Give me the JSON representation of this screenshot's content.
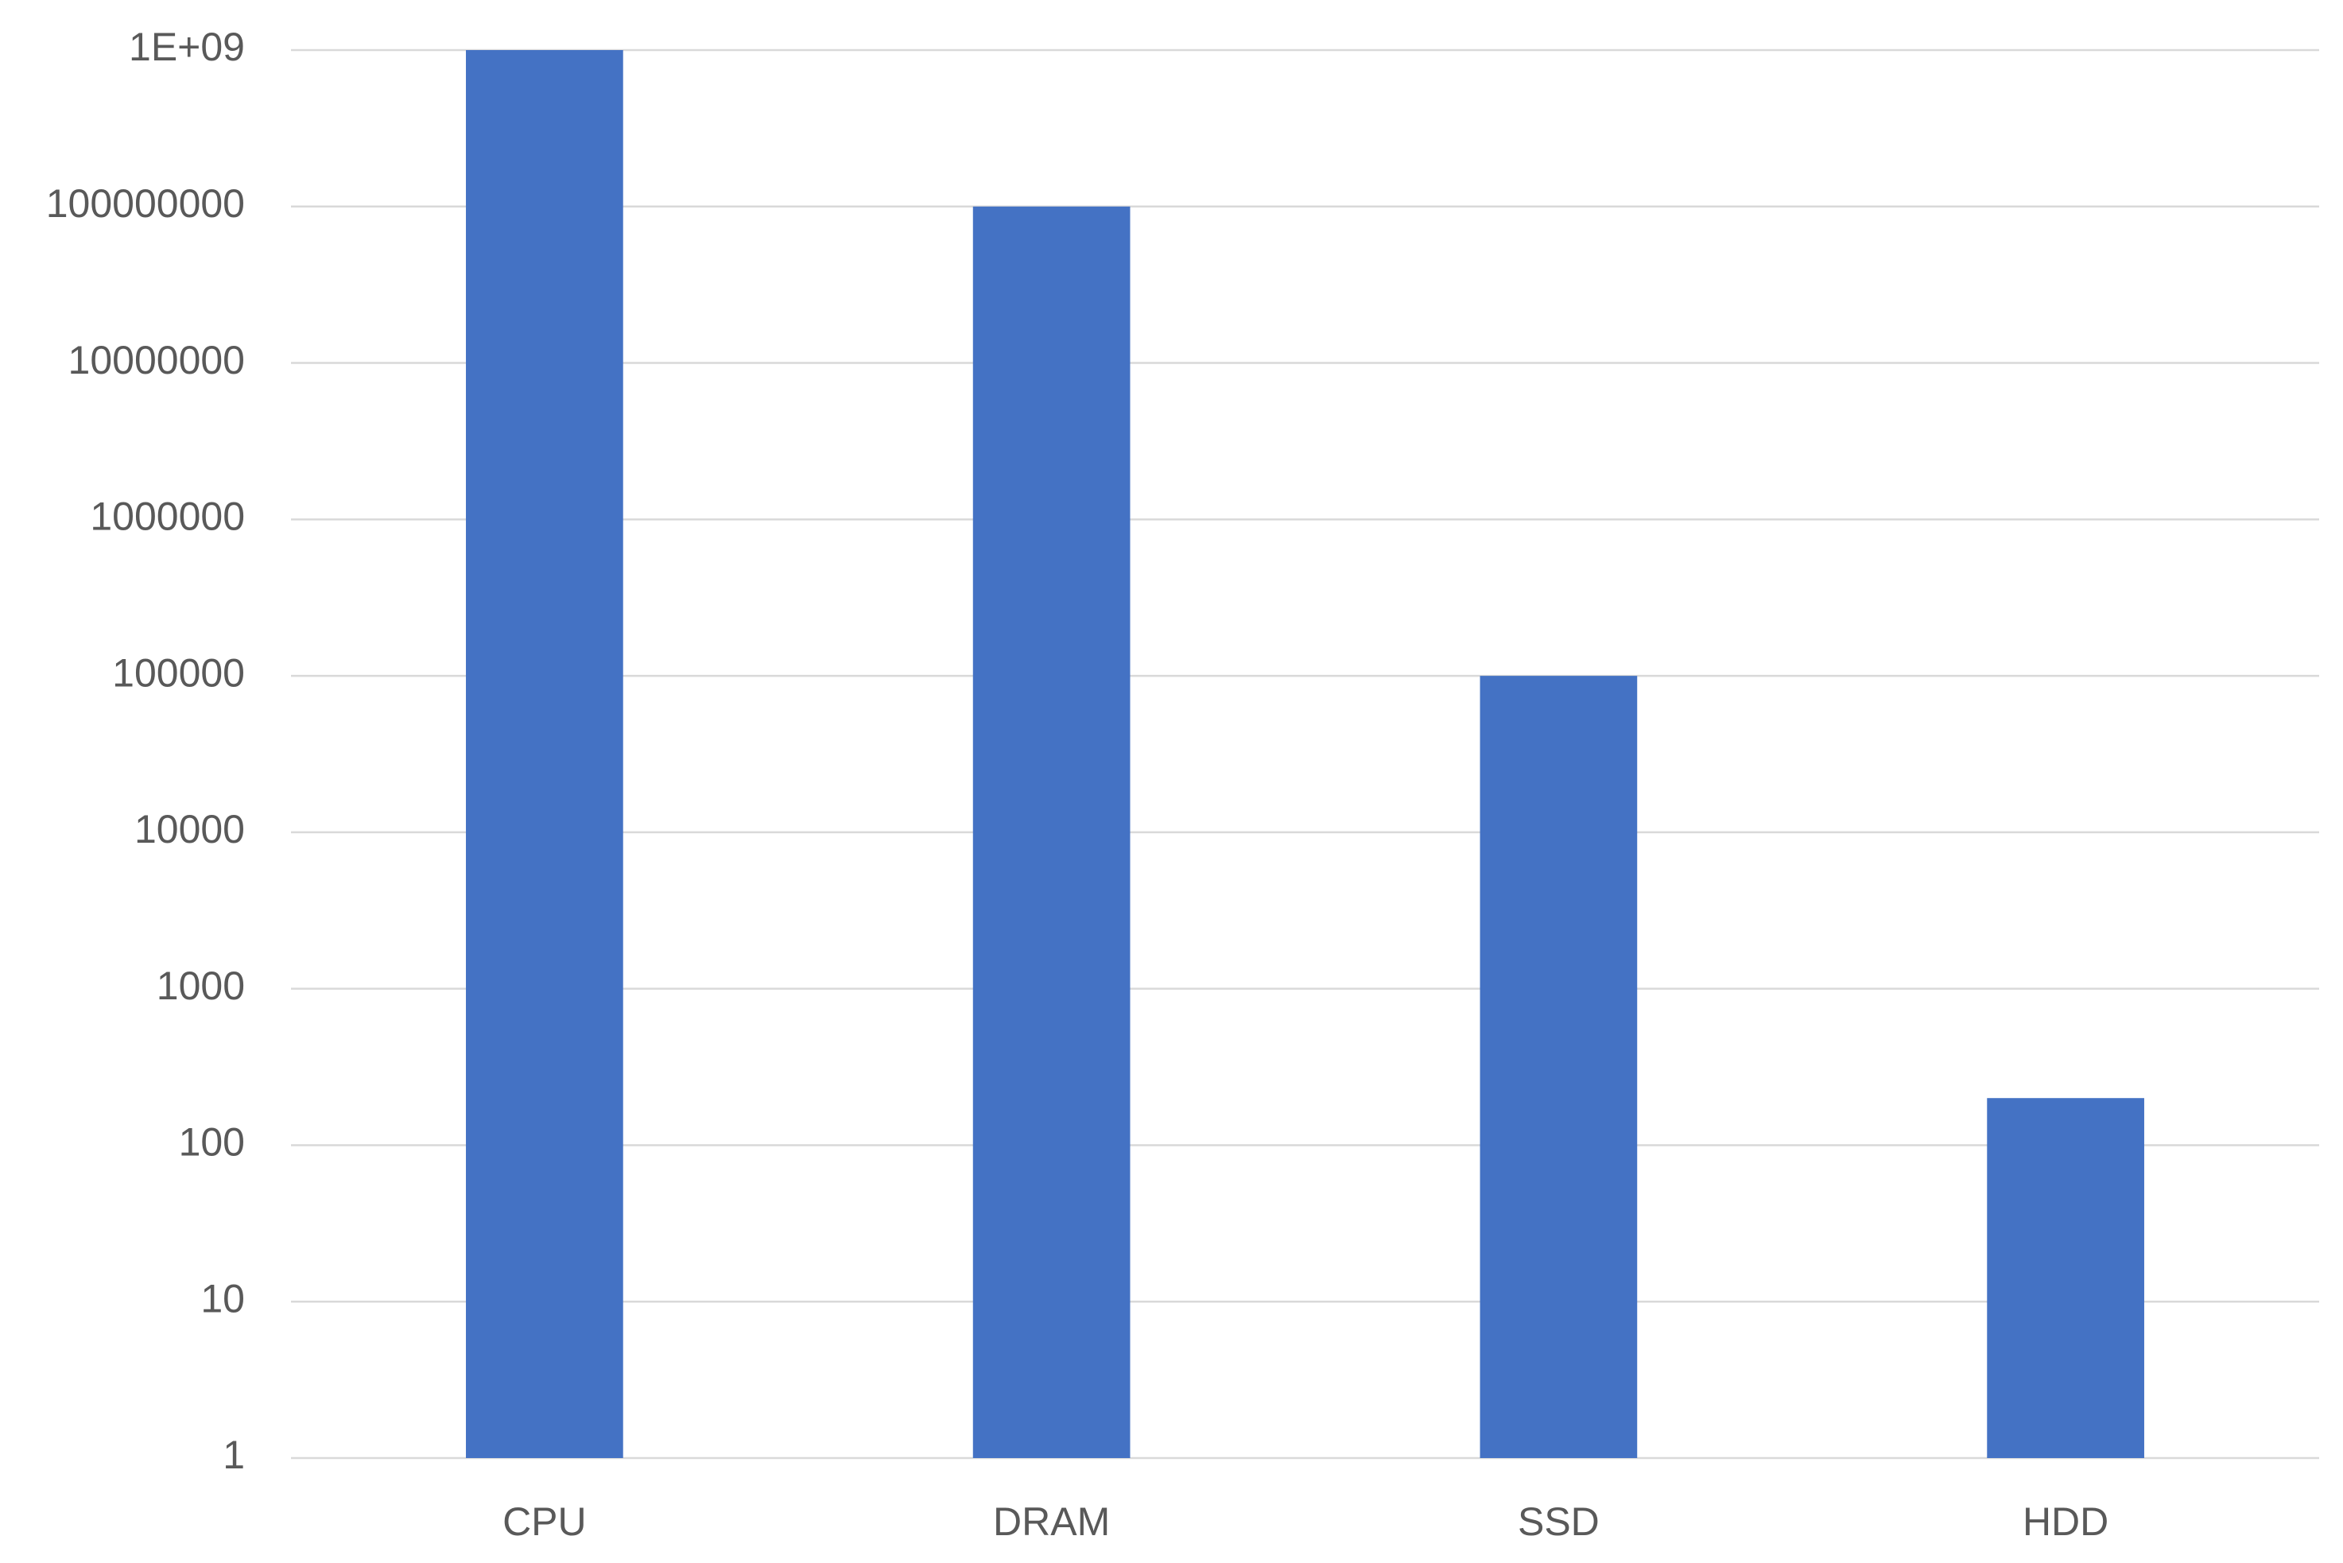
{
  "chart_data": {
    "type": "bar",
    "categories": [
      "CPU",
      "DRAM",
      "SSD",
      "HDD"
    ],
    "values": [
      1000000000,
      100000000,
      100000,
      200
    ],
    "color": "#4472c4",
    "log_scale": true,
    "ylim": [
      1,
      1000000000
    ],
    "yticks": [
      1,
      10,
      100,
      1000,
      10000,
      100000,
      1000000,
      10000000,
      100000000,
      {
        "value": 1000000000,
        "label": "1E+09"
      }
    ],
    "grid": true
  }
}
